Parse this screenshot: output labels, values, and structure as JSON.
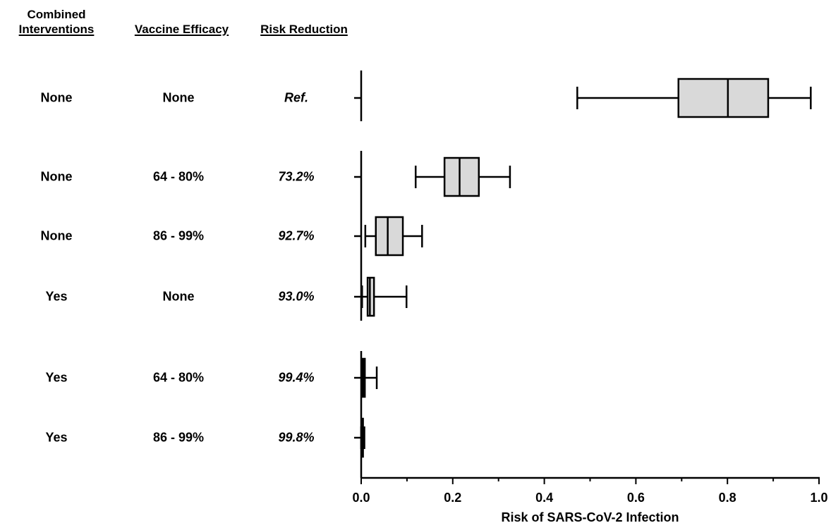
{
  "headers": {
    "interventions_line1": "Combined",
    "interventions_line2": "Interventions",
    "vaccine": "Vaccine Efficacy",
    "risk": "Risk Reduction"
  },
  "rows": [
    {
      "interventions": "None",
      "vaccine": "None",
      "risk_reduction": "Ref."
    },
    {
      "interventions": "None",
      "vaccine": "64 - 80%",
      "risk_reduction": "73.2%"
    },
    {
      "interventions": "None",
      "vaccine": "86 - 99%",
      "risk_reduction": "92.7%"
    },
    {
      "interventions": "Yes",
      "vaccine": "None",
      "risk_reduction": "93.0%"
    },
    {
      "interventions": "Yes",
      "vaccine": "64 - 80%",
      "risk_reduction": "99.4%"
    },
    {
      "interventions": "Yes",
      "vaccine": "86 - 99%",
      "risk_reduction": "99.8%"
    }
  ],
  "chart_data": {
    "type": "box",
    "xlabel": "Risk of SARS-CoV-2 Infection",
    "xlim": [
      0,
      1.0
    ],
    "xticks": [
      "0.0",
      "0.2",
      "0.4",
      "0.6",
      "0.8",
      "1.0"
    ],
    "box_fill": "#d9d9d9",
    "boxes": [
      {
        "min": 0.472,
        "q1": 0.693,
        "median": 0.801,
        "q3": 0.889,
        "max": 0.982
      },
      {
        "min": 0.119,
        "q1": 0.182,
        "median": 0.215,
        "q3": 0.257,
        "max": 0.325
      },
      {
        "min": 0.009,
        "q1": 0.032,
        "median": 0.058,
        "q3": 0.091,
        "max": 0.133
      },
      {
        "min": 0.002,
        "q1": 0.014,
        "median": 0.019,
        "q3": 0.028,
        "max": 0.099
      },
      {
        "min": 0.001,
        "q1": 0.003,
        "median": 0.005,
        "q3": 0.008,
        "max": 0.034
      },
      {
        "min": 0.0,
        "q1": 0.002,
        "median": 0.003,
        "q3": 0.004,
        "max": 0.007
      }
    ]
  }
}
